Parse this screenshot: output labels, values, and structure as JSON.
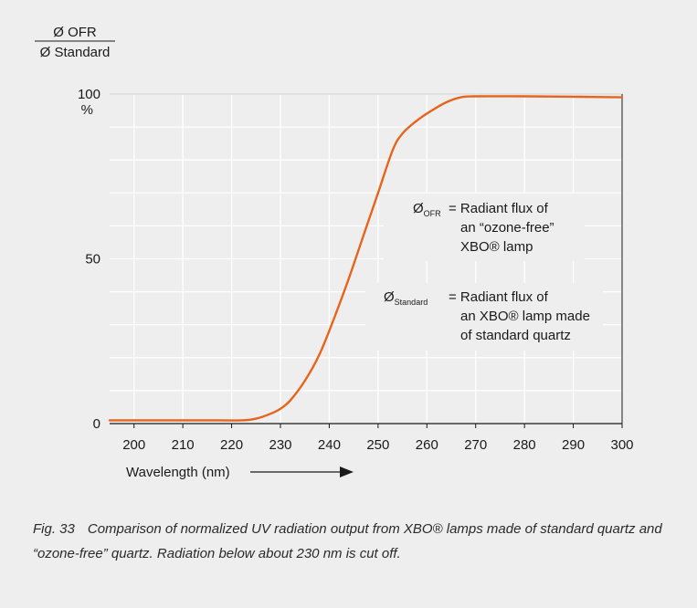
{
  "chart_data": {
    "type": "line",
    "ylabel_numerator": "Ø OFR",
    "ylabel_denominator": "Ø Standard",
    "ylabel_unit": "%",
    "xlabel": "Wavelength (nm)",
    "xlim": [
      195,
      300
    ],
    "ylim": [
      0,
      100
    ],
    "x_ticks": [
      "200",
      "210",
      "220",
      "230",
      "240",
      "250",
      "260",
      "270",
      "280",
      "290",
      "300"
    ],
    "y_ticks": [
      "0",
      "50",
      "100"
    ],
    "grid": true,
    "line_color": "#e8641c",
    "x": [
      195,
      205,
      215,
      222,
      225,
      228,
      230,
      232,
      235,
      238,
      241,
      244,
      247,
      250,
      253,
      255,
      258,
      261,
      264,
      267,
      270,
      280,
      290,
      300
    ],
    "y": [
      1,
      1,
      1,
      1,
      1.5,
      3,
      4.5,
      7,
      13,
      21,
      32,
      44,
      57,
      70,
      83,
      88,
      92,
      95,
      97.5,
      99,
      99.3,
      99.3,
      99.2,
      99
    ],
    "annotations": [
      {
        "symbol": "Ø",
        "subscript": "OFR",
        "lines": [
          "= Radiant flux of",
          "an “ozone-free”",
          "XBO® lamp"
        ]
      },
      {
        "symbol": "Ø",
        "subscript": "Standard",
        "lines": [
          "= Radiant flux of",
          "an XBO® lamp made",
          "of standard quartz"
        ]
      }
    ]
  },
  "caption": {
    "figure": "Fig. 33",
    "text": "Comparison of normalized UV radiation output from XBO® lamps made of standard quartz and “ozone-free” quartz. Radiation below about 230 nm is cut off."
  }
}
